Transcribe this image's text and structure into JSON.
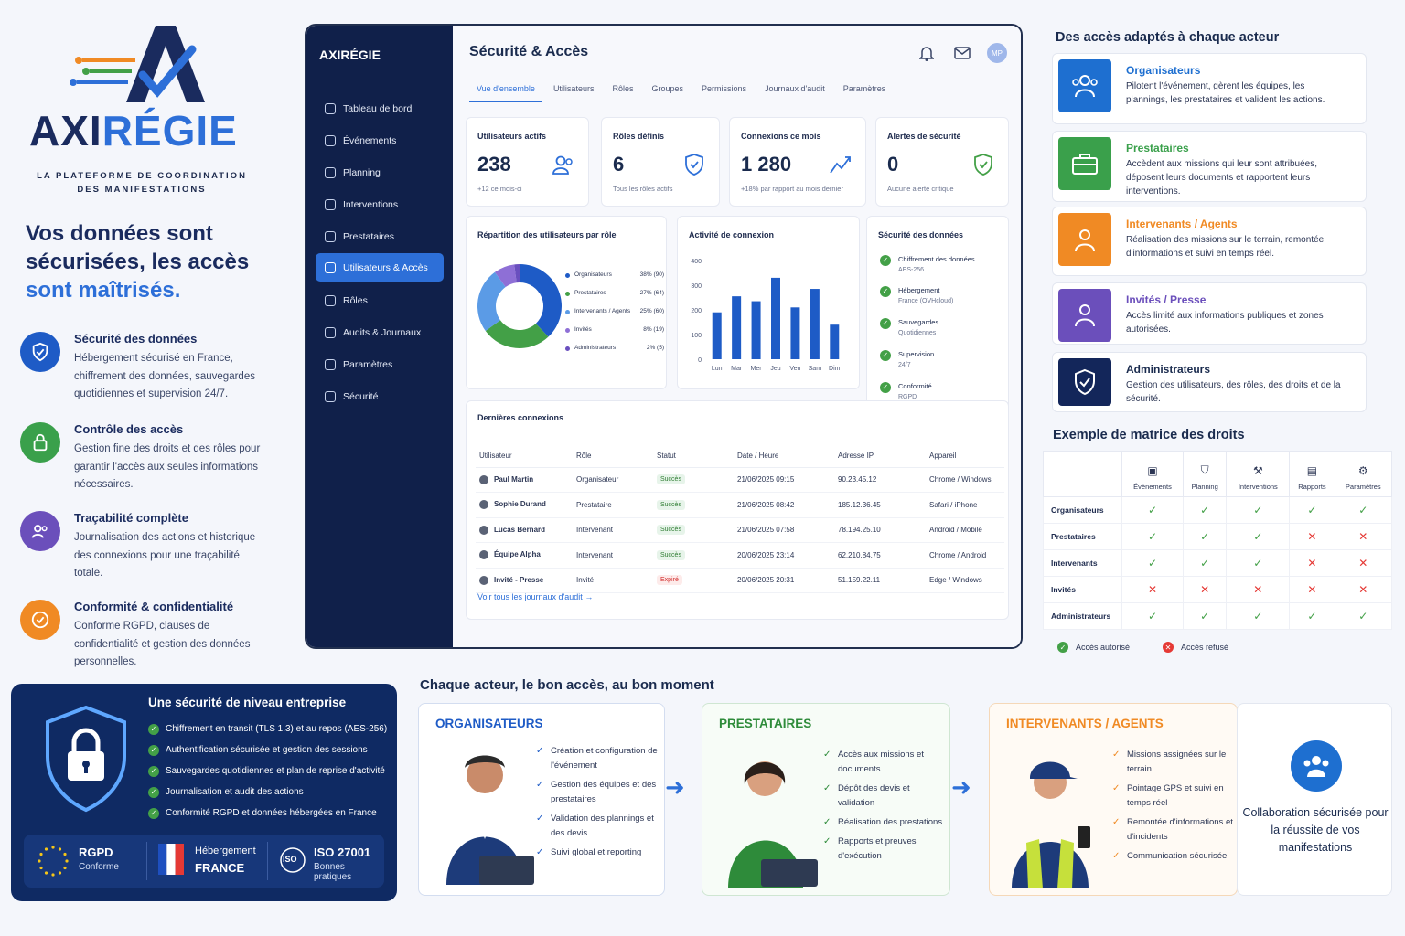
{
  "brand": {
    "name_part1": "AXI",
    "name_part2": "RÉGIE",
    "tagline_l1": "LA PLATEFORME DE COORDINATION",
    "tagline_l2": "DES MANIFESTATIONS"
  },
  "hero": {
    "line1": "Vos données sont",
    "line2": "sécurisées, les accès",
    "line3": "sont maîtrisés."
  },
  "features": [
    {
      "title": "Sécurité des données",
      "desc": "Hébergement sécurisé en France, chiffrement des données, sauvegardes quotidiennes et supervision 24/7.",
      "icon": "shield-check-icon",
      "color": "#1e5bc6"
    },
    {
      "title": "Contrôle des accès",
      "desc": "Gestion fine des droits et des rôles pour garantir l'accès aux seules informations nécessaires.",
      "icon": "lock-icon",
      "color": "#3aa04b"
    },
    {
      "title": "Traçabilité complète",
      "desc": "Journalisation des actions et historique des connexions pour une traçabilité totale.",
      "icon": "users-icon",
      "color": "#6b4fbb"
    },
    {
      "title": "Conformité & confidentialité",
      "desc": "Conforme RGPD, clauses de confidentialité et gestion des données personnelles.",
      "icon": "check-circle-icon",
      "color": "#f08a24"
    }
  ],
  "enterprise": {
    "title": "Une sécurité de niveau entreprise",
    "items": [
      "Chiffrement en transit (TLS 1.3) et au repos (AES-256)",
      "Authentification sécurisée et gestion des sessions",
      "Sauvegardes quotidiennes et plan de reprise d'activité",
      "Journalisation et audit des actions",
      "Conformité RGPD et données hébergées en France"
    ],
    "badges": {
      "rgpd_big": "RGPD",
      "rgpd_small": "Conforme",
      "host_big": "Hébergement",
      "host_small": "FRANCE",
      "iso_label": "ISO",
      "iso_big": "ISO 27001",
      "iso_small": "Bonnes pratiques"
    }
  },
  "app": {
    "logo": "AXIRÉGIE",
    "sidebar": [
      {
        "label": "Tableau de bord",
        "active": false
      },
      {
        "label": "Événements",
        "active": false
      },
      {
        "label": "Planning",
        "active": false
      },
      {
        "label": "Interventions",
        "active": false
      },
      {
        "label": "Prestataires",
        "active": false
      },
      {
        "label": "Utilisateurs & Accès",
        "active": true
      },
      {
        "label": "Rôles",
        "active": false
      },
      {
        "label": "Audits & Journaux",
        "active": false
      },
      {
        "label": "Paramètres",
        "active": false
      },
      {
        "label": "Sécurité",
        "active": false
      }
    ],
    "title": "Sécurité & Accès",
    "avatar": "MP",
    "tabs": [
      "Vue d'ensemble",
      "Utilisateurs",
      "Rôles",
      "Groupes",
      "Permissions",
      "Journaux d'audit",
      "Paramètres"
    ],
    "kpis": [
      {
        "label": "Utilisateurs actifs",
        "value": "238",
        "sub": "+12 ce mois-ci"
      },
      {
        "label": "Rôles définis",
        "value": "6",
        "sub": "Tous les rôles actifs"
      },
      {
        "label": "Connexions ce mois",
        "value": "1 280",
        "sub": "+18% par rapport au mois dernier"
      },
      {
        "label": "Alertes de sécurité",
        "value": "0",
        "sub": "Aucune alerte critique"
      }
    ],
    "roles_panel_title": "Répartition des utilisateurs par rôle",
    "activity_panel_title": "Activité de connexion",
    "security_panel_title": "Sécurité des données",
    "security_items": [
      {
        "title": "Chiffrement des données",
        "sub": "AES-256"
      },
      {
        "title": "Hébergement",
        "sub": "France (OVHcloud)"
      },
      {
        "title": "Sauvegardes",
        "sub": "Quotidiennes"
      },
      {
        "title": "Supervision",
        "sub": "24/7"
      },
      {
        "title": "Conformité",
        "sub": "RGPD"
      }
    ],
    "recent_title": "Dernières connexions",
    "table_headers": [
      "Utilisateur",
      "Rôle",
      "Statut",
      "Date / Heure",
      "Adresse IP",
      "Appareil"
    ],
    "table_rows": [
      {
        "user": "Paul Martin",
        "role": "Organisateur",
        "status": "Succès",
        "ok": true,
        "date": "21/06/2025 09:15",
        "ip": "90.23.45.12",
        "device": "Chrome / Windows"
      },
      {
        "user": "Sophie Durand",
        "role": "Prestataire",
        "status": "Succès",
        "ok": true,
        "date": "21/06/2025 08:42",
        "ip": "185.12.36.45",
        "device": "Safari / iPhone"
      },
      {
        "user": "Lucas Bernard",
        "role": "Intervenant",
        "status": "Succès",
        "ok": true,
        "date": "21/06/2025 07:58",
        "ip": "78.194.25.10",
        "device": "Android / Mobile"
      },
      {
        "user": "Équipe Alpha",
        "role": "Intervenant",
        "status": "Succès",
        "ok": true,
        "date": "20/06/2025 23:14",
        "ip": "62.210.84.75",
        "device": "Chrome / Android"
      },
      {
        "user": "Invité - Presse",
        "role": "Invité",
        "status": "Expiré",
        "ok": false,
        "date": "20/06/2025 20:31",
        "ip": "51.159.22.11",
        "device": "Edge / Windows"
      }
    ],
    "see_all": "Voir tous les journaux d'audit"
  },
  "chart_data": [
    {
      "type": "pie",
      "title": "Répartition des utilisateurs par rôle",
      "slices": [
        {
          "label": "Organisateurs",
          "percent": 38,
          "count": 90,
          "display": "38% (90)",
          "color": "#1e5bc6"
        },
        {
          "label": "Prestataires",
          "percent": 27,
          "count": 64,
          "display": "27% (64)",
          "color": "#43a047"
        },
        {
          "label": "Intervenants / Agents",
          "percent": 25,
          "count": 60,
          "display": "25% (60)",
          "color": "#5b9be6"
        },
        {
          "label": "Invités",
          "percent": 8,
          "count": 19,
          "display": "8% (19)",
          "color": "#8e6fd6"
        },
        {
          "label": "Administrateurs",
          "percent": 2,
          "count": 5,
          "display": "2% (5)",
          "color": "#6a4fbf"
        }
      ]
    },
    {
      "type": "bar",
      "title": "Activité de connexion",
      "categories": [
        "Lun",
        "Mar",
        "Mer",
        "Jeu",
        "Ven",
        "Sam",
        "Dim"
      ],
      "values": [
        190,
        255,
        235,
        330,
        210,
        285,
        140
      ],
      "ylim": [
        0,
        400
      ],
      "yticks": [
        "0",
        "100",
        "200",
        "300",
        "400"
      ],
      "color": "#1e5bc6"
    }
  ],
  "display_order_note": "",
  "bar_order": [
    "Lun",
    "Mar",
    "Mer",
    "Jeu",
    "Sam",
    "Ven",
    "Dim"
  ],
  "right": {
    "title": "Des accès adaptés à chaque acteur",
    "roles": [
      {
        "title": "Organisateurs",
        "desc": "Pilotent l'événement, gèrent les équipes, les plannings, les prestataires et valident les actions.",
        "color": "#1e6fd0"
      },
      {
        "title": "Prestataires",
        "desc": "Accèdent aux missions qui leur sont attribuées, déposent leurs documents et rapportent leurs interventions.",
        "color": "#3aa04b"
      },
      {
        "title": "Intervenants / Agents",
        "desc": "Réalisation des missions sur le terrain, remontée d'informations et suivi en temps réel.",
        "color": "#f08a24"
      },
      {
        "title": "Invités / Presse",
        "desc": "Accès limité aux informations publiques et zones autorisées.",
        "color": "#6b4fbb"
      },
      {
        "title": "Administrateurs",
        "desc": "Gestion des utilisateurs, des rôles, des droits et de la sécurité.",
        "color": "#13265a"
      }
    ],
    "matrix_title": "Exemple de matrice des droits",
    "matrix_cols": [
      "Événements",
      "Planning",
      "Interventions",
      "Rapports",
      "Paramètres"
    ],
    "matrix_rows": [
      {
        "name": "Organisateurs",
        "vals": [
          true,
          true,
          true,
          true,
          true
        ]
      },
      {
        "name": "Prestataires",
        "vals": [
          true,
          true,
          true,
          false,
          false
        ]
      },
      {
        "name": "Intervenants",
        "vals": [
          true,
          true,
          true,
          false,
          false
        ]
      },
      {
        "name": "Invités",
        "vals": [
          false,
          false,
          false,
          false,
          false
        ]
      },
      {
        "name": "Administrateurs",
        "vals": [
          true,
          true,
          true,
          true,
          true
        ]
      }
    ],
    "legend_yes": "Accès autorisé",
    "legend_no": "Accès refusé"
  },
  "bottom": {
    "title": "Chaque acteur, le bon accès, au bon moment",
    "cards": [
      {
        "title": "ORGANISATEURS",
        "color": "#1e5bc6",
        "items": [
          "Création et configuration de l'événement",
          "Gestion des équipes et des prestataires",
          "Validation des plannings et des devis",
          "Suivi global et reporting"
        ]
      },
      {
        "title": "PRESTATAIRES",
        "color": "#2e8b3a",
        "items": [
          "Accès aux missions et documents",
          "Dépôt des devis et validation",
          "Réalisation des prestations",
          "Rapports et preuves d'exécution"
        ]
      },
      {
        "title": "INTERVENANTS / AGENTS",
        "color": "#f08a24",
        "items": [
          "Missions assignées sur le terrain",
          "Pointage GPS et suivi en temps réel",
          "Remontée d'informations et d'incidents",
          "Communication sécurisée"
        ]
      }
    ],
    "collab": "Collaboration sécurisée pour la réussite de vos manifestations"
  }
}
